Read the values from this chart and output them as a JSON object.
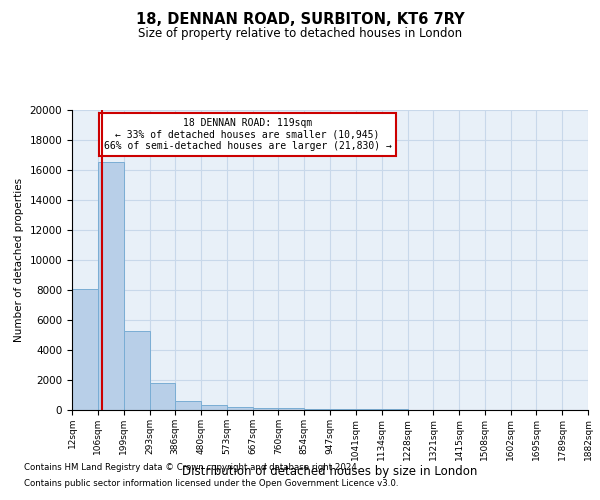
{
  "title": "18, DENNAN ROAD, SURBITON, KT6 7RY",
  "subtitle": "Size of property relative to detached houses in London",
  "xlabel": "Distribution of detached houses by size in London",
  "ylabel": "Number of detached properties",
  "bar_color": "#b8cfe8",
  "bar_edge_color": "#7aadd4",
  "grid_color": "#c8d8ea",
  "background_color": "#e8f0f8",
  "annotation_box_color": "#ffffff",
  "annotation_border_color": "#cc0000",
  "vline_color": "#cc0000",
  "footnote1": "Contains HM Land Registry data © Crown copyright and database right 2024.",
  "footnote2": "Contains public sector information licensed under the Open Government Licence v3.0.",
  "annotation_line1": "18 DENNAN ROAD: 119sqm",
  "annotation_line2": "← 33% of detached houses are smaller (10,945)",
  "annotation_line3": "66% of semi-detached houses are larger (21,830) →",
  "property_size": 119,
  "bin_edges": [
    12,
    106,
    199,
    293,
    386,
    480,
    573,
    667,
    760,
    854,
    947,
    1041,
    1134,
    1228,
    1321,
    1415,
    1508,
    1602,
    1695,
    1789,
    1882
  ],
  "bar_heights": [
    8050,
    16500,
    5250,
    1800,
    620,
    340,
    220,
    155,
    110,
    85,
    65,
    50,
    40,
    32,
    24,
    18,
    13,
    9,
    6,
    4
  ],
  "ylim": [
    0,
    20000
  ],
  "yticks": [
    0,
    2000,
    4000,
    6000,
    8000,
    10000,
    12000,
    14000,
    16000,
    18000,
    20000
  ]
}
